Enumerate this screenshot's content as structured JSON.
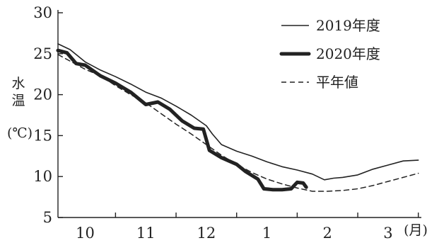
{
  "chart_data": {
    "type": "line",
    "ylabel": [
      "水",
      "温"
    ],
    "yunit": "(℃)",
    "xunit": "(月)",
    "ylim": [
      5,
      30
    ],
    "yticks": [
      5,
      10,
      15,
      20,
      25,
      30
    ],
    "xlim": [
      9.55,
      3.55
    ],
    "month_ticks": [
      {
        "label": "10",
        "pos": 10.0
      },
      {
        "label": "11",
        "pos": 11.0
      },
      {
        "label": "12",
        "pos": 12.0
      },
      {
        "label": "1",
        "pos": 13.0
      },
      {
        "label": "2",
        "pos": 14.0
      },
      {
        "label": "3",
        "pos": 15.0
      }
    ],
    "legend_position": "top-right",
    "series": [
      {
        "name": "2019年度",
        "style": "thin",
        "color": "#222222",
        "points": [
          [
            9.55,
            26.2
          ],
          [
            9.75,
            25.5
          ],
          [
            10.0,
            24.0
          ],
          [
            10.25,
            23.0
          ],
          [
            10.5,
            22.2
          ],
          [
            10.75,
            21.3
          ],
          [
            11.0,
            20.3
          ],
          [
            11.25,
            19.6
          ],
          [
            11.5,
            18.6
          ],
          [
            11.75,
            17.5
          ],
          [
            12.0,
            16.2
          ],
          [
            12.1,
            15.2
          ],
          [
            12.25,
            13.9
          ],
          [
            12.5,
            13.1
          ],
          [
            12.75,
            12.5
          ],
          [
            13.0,
            11.8
          ],
          [
            13.25,
            11.2
          ],
          [
            13.5,
            10.8
          ],
          [
            13.75,
            10.3
          ],
          [
            13.95,
            9.6
          ],
          [
            14.1,
            9.8
          ],
          [
            14.25,
            9.9
          ],
          [
            14.5,
            10.2
          ],
          [
            14.75,
            10.9
          ],
          [
            15.0,
            11.4
          ],
          [
            15.25,
            11.9
          ],
          [
            15.5,
            12.0
          ]
        ]
      },
      {
        "name": "2020年度",
        "style": "bold",
        "color": "#222222",
        "points": [
          [
            9.55,
            25.4
          ],
          [
            9.7,
            25.1
          ],
          [
            9.85,
            23.8
          ],
          [
            10.0,
            23.6
          ],
          [
            10.25,
            22.3
          ],
          [
            10.5,
            21.4
          ],
          [
            10.75,
            20.3
          ],
          [
            11.0,
            18.8
          ],
          [
            11.2,
            19.1
          ],
          [
            11.4,
            18.2
          ],
          [
            11.6,
            16.8
          ],
          [
            11.8,
            15.9
          ],
          [
            11.95,
            15.8
          ],
          [
            12.05,
            13.2
          ],
          [
            12.25,
            12.3
          ],
          [
            12.5,
            11.5
          ],
          [
            12.65,
            10.6
          ],
          [
            12.85,
            9.7
          ],
          [
            12.95,
            8.5
          ],
          [
            13.1,
            8.4
          ],
          [
            13.25,
            8.4
          ],
          [
            13.4,
            8.5
          ],
          [
            13.5,
            9.3
          ],
          [
            13.6,
            9.2
          ],
          [
            13.65,
            8.7
          ]
        ]
      },
      {
        "name": "平年値",
        "style": "dashed",
        "color": "#222222",
        "points": [
          [
            9.55,
            24.9
          ],
          [
            9.75,
            24.1
          ],
          [
            10.0,
            23.1
          ],
          [
            10.25,
            22.3
          ],
          [
            10.5,
            21.1
          ],
          [
            10.75,
            20.0
          ],
          [
            11.0,
            19.0
          ],
          [
            11.25,
            17.7
          ],
          [
            11.5,
            16.4
          ],
          [
            11.75,
            15.2
          ],
          [
            12.0,
            13.9
          ],
          [
            12.25,
            12.6
          ],
          [
            12.5,
            11.5
          ],
          [
            12.75,
            10.5
          ],
          [
            13.0,
            9.7
          ],
          [
            13.25,
            9.1
          ],
          [
            13.5,
            8.6
          ],
          [
            13.75,
            8.2
          ],
          [
            14.0,
            8.2
          ],
          [
            14.25,
            8.3
          ],
          [
            14.5,
            8.5
          ],
          [
            14.75,
            8.9
          ],
          [
            15.0,
            9.4
          ],
          [
            15.25,
            9.9
          ],
          [
            15.5,
            10.4
          ]
        ]
      }
    ]
  }
}
